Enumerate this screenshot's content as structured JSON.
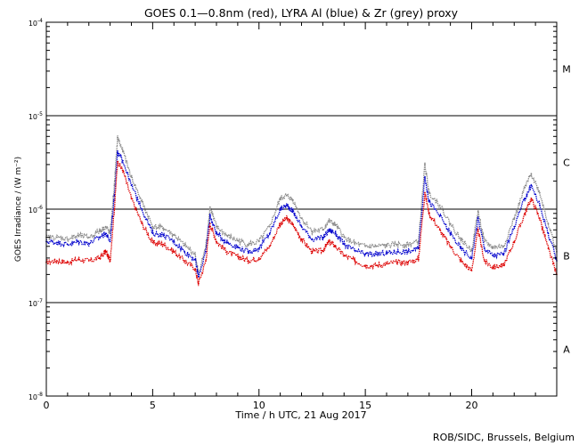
{
  "chart_data": {
    "type": "scatter",
    "title": "GOES 0.1—0.8nm (red), LYRA Al (blue) & Zr (grey) proxy",
    "xlabel": "Time / h UTC, 21 Aug 2017",
    "ylabel": "GOES Irradiance / (W m⁻²)",
    "xlim": [
      0,
      24
    ],
    "ylim": [
      1e-08,
      0.0001
    ],
    "yscale": "log",
    "x_ticks": [
      0,
      5,
      10,
      15,
      20
    ],
    "y_ticks": [
      {
        "value": 1e-08,
        "base": "10",
        "exp": "-8"
      },
      {
        "value": 1e-07,
        "base": "10",
        "exp": "-7"
      },
      {
        "value": 1e-06,
        "base": "10",
        "exp": "-6"
      },
      {
        "value": 1e-05,
        "base": "10",
        "exp": "-5"
      },
      {
        "value": 0.0001,
        "base": "10",
        "exp": "-4"
      }
    ],
    "flare_class_levels": [
      1e-07,
      1e-06,
      1e-05
    ],
    "flare_classes": [
      {
        "label": "A",
        "at": 3.16e-08
      },
      {
        "label": "B",
        "at": 3.16e-07
      },
      {
        "label": "C",
        "at": 3.16e-06
      },
      {
        "label": "M",
        "at": 3.16e-05
      }
    ],
    "credit": "ROB/SIDC, Brussels, Belgium",
    "series": [
      {
        "color": "#dd0000",
        "x": [
          0,
          0.5,
          1,
          1.5,
          2,
          2.5,
          2.8,
          3.0,
          3.2,
          3.35,
          3.6,
          4.0,
          4.5,
          5.0,
          5.5,
          6.0,
          6.5,
          7.0,
          7.15,
          7.5,
          7.7,
          8.0,
          8.5,
          9.0,
          9.5,
          10.0,
          10.5,
          11.0,
          11.3,
          11.6,
          12.0,
          12.5,
          13.0,
          13.3,
          13.6,
          14.0,
          14.5,
          15.0,
          15.5,
          16.0,
          16.5,
          17.0,
          17.5,
          17.8,
          18.0,
          18.5,
          19.0,
          19.5,
          20.0,
          20.3,
          20.6,
          21.0,
          21.5,
          22.0,
          22.5,
          22.8,
          23.2,
          23.6,
          24.0
        ],
        "y": [
          2.7e-07,
          2.8e-07,
          2.7e-07,
          2.9e-07,
          2.8e-07,
          3e-07,
          3.5e-07,
          2.8e-07,
          1e-06,
          3.2e-06,
          2.6e-06,
          1.3e-06,
          7e-07,
          4.4e-07,
          4.2e-07,
          3.5e-07,
          2.8e-07,
          2.3e-07,
          1.6e-07,
          2.8e-07,
          7e-07,
          4.5e-07,
          3.5e-07,
          3.1e-07,
          2.8e-07,
          3e-07,
          4e-07,
          7e-07,
          8e-07,
          6.8e-07,
          4.8e-07,
          3.5e-07,
          3.6e-07,
          4.5e-07,
          4e-07,
          3.2e-07,
          2.8e-07,
          2.5e-07,
          2.5e-07,
          2.6e-07,
          2.7e-07,
          2.7e-07,
          2.9e-07,
          1.5e-06,
          9e-07,
          6e-07,
          4e-07,
          2.8e-07,
          2.2e-07,
          6e-07,
          2.8e-07,
          2.4e-07,
          2.5e-07,
          4.5e-07,
          9e-07,
          1.3e-06,
          8e-07,
          3.8e-07,
          2e-07
        ]
      },
      {
        "color": "#0000cc",
        "x": [
          0,
          0.5,
          1,
          1.5,
          2,
          2.5,
          2.8,
          3.0,
          3.2,
          3.35,
          3.6,
          4.0,
          4.5,
          5.0,
          5.5,
          6.0,
          6.5,
          7.0,
          7.15,
          7.5,
          7.7,
          8.0,
          8.5,
          9.0,
          9.5,
          10.0,
          10.5,
          11.0,
          11.3,
          11.6,
          12.0,
          12.5,
          13.0,
          13.3,
          13.6,
          14.0,
          14.5,
          15.0,
          15.5,
          16.0,
          16.5,
          17.0,
          17.5,
          17.8,
          18.0,
          18.5,
          19.0,
          19.5,
          20.0,
          20.3,
          20.6,
          21.0,
          21.5,
          22.0,
          22.5,
          22.8,
          23.2,
          23.6,
          24.0
        ],
        "y": [
          4.5e-07,
          4.4e-07,
          4.2e-07,
          4.5e-07,
          4.3e-07,
          5e-07,
          5.5e-07,
          4.5e-07,
          1.4e-06,
          4e-06,
          3.3e-06,
          1.8e-06,
          1e-06,
          5.5e-07,
          5.3e-07,
          4.5e-07,
          3.5e-07,
          2.9e-07,
          1.9e-07,
          3.5e-07,
          8.5e-07,
          5.5e-07,
          4.4e-07,
          3.9e-07,
          3.5e-07,
          3.8e-07,
          5.5e-07,
          1e-06,
          1.1e-06,
          9.5e-07,
          6.5e-07,
          4.8e-07,
          4.9e-07,
          6e-07,
          5.5e-07,
          4.2e-07,
          3.6e-07,
          3.3e-07,
          3.3e-07,
          3.4e-07,
          3.5e-07,
          3.5e-07,
          3.8e-07,
          2.2e-06,
          1.2e-06,
          8.5e-07,
          5.5e-07,
          3.8e-07,
          3e-07,
          8e-07,
          3.8e-07,
          3.2e-07,
          3.3e-07,
          6.5e-07,
          1.3e-06,
          1.8e-06,
          1.1e-06,
          5.5e-07,
          2.8e-07
        ]
      },
      {
        "color": "#888888",
        "x": [
          0,
          0.5,
          1,
          1.5,
          2,
          2.5,
          2.8,
          3.0,
          3.2,
          3.35,
          3.6,
          4.0,
          4.5,
          5.0,
          5.5,
          6.0,
          6.5,
          7.0,
          7.15,
          7.5,
          7.7,
          8.0,
          8.5,
          9.0,
          9.5,
          10.0,
          10.5,
          11.0,
          11.3,
          11.6,
          12.0,
          12.5,
          13.0,
          13.3,
          13.6,
          14.0,
          14.5,
          15.0,
          15.5,
          16.0,
          16.5,
          17.0,
          17.5,
          17.8,
          18.0,
          18.5,
          19.0,
          19.5,
          20.0,
          20.3,
          20.6,
          21.0,
          21.5,
          22.0,
          22.5,
          22.8,
          23.2,
          23.6,
          24.0
        ],
        "y": [
          5e-07,
          5e-07,
          4.8e-07,
          5.2e-07,
          5e-07,
          5.8e-07,
          6.5e-07,
          5.5e-07,
          1.8e-06,
          5.8e-06,
          4.2e-06,
          2.2e-06,
          1.2e-06,
          6.5e-07,
          6.3e-07,
          5.3e-07,
          4.1e-07,
          3.3e-07,
          2e-07,
          4e-07,
          1.05e-06,
          6.5e-07,
          5.2e-07,
          4.6e-07,
          4.2e-07,
          4.5e-07,
          6.5e-07,
          1.3e-06,
          1.4e-06,
          1.25e-06,
          8e-07,
          5.8e-07,
          6e-07,
          7.5e-07,
          6.8e-07,
          5e-07,
          4.3e-07,
          4e-07,
          4e-07,
          4.1e-07,
          4.2e-07,
          4.2e-07,
          4.5e-07,
          3e-06,
          1.5e-06,
          1.1e-06,
          7e-07,
          4.7e-07,
          3.6e-07,
          9.5e-07,
          4.5e-07,
          3.9e-07,
          4e-07,
          8e-07,
          1.7e-06,
          2.4e-06,
          1.5e-06,
          7e-07,
          3.5e-07
        ]
      }
    ]
  }
}
